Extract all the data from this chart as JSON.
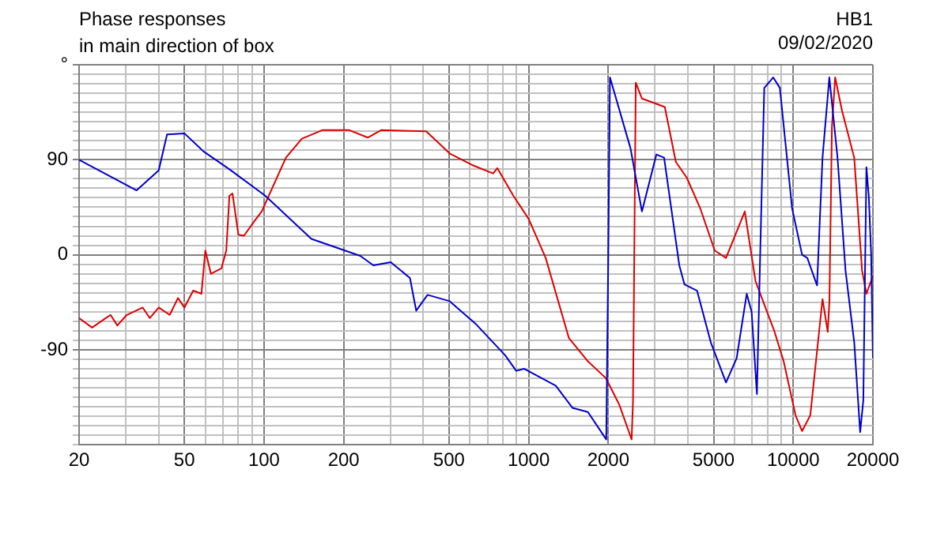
{
  "chart_data": {
    "type": "line",
    "title": "Phase responses",
    "subtitle": "in main direction of box",
    "annotations": [
      "HB1",
      "09/02/2020"
    ],
    "log": "x",
    "grid": true,
    "legend": false,
    "marker": "none",
    "line_style": "solid",
    "xlim": [
      20,
      20000
    ],
    "xticks": [
      20,
      {
        "value": 30,
        "label": null
      },
      {
        "value": 40,
        "label": null
      },
      50,
      {
        "value": 60,
        "label": null
      },
      {
        "value": 70,
        "label": null
      },
      {
        "value": 80,
        "label": null
      },
      {
        "value": 90,
        "label": null
      },
      100,
      200,
      {
        "value": 300,
        "label": null
      },
      {
        "value": 400,
        "label": null
      },
      500,
      {
        "value": 600,
        "label": null
      },
      {
        "value": 700,
        "label": null
      },
      {
        "value": 800,
        "label": null
      },
      {
        "value": 900,
        "label": null
      },
      1000,
      2000,
      {
        "value": 3000,
        "label": null
      },
      {
        "value": 4000,
        "label": null
      },
      5000,
      {
        "value": 6000,
        "label": null
      },
      {
        "value": 7000,
        "label": null
      },
      {
        "value": 8000,
        "label": null
      },
      {
        "value": 9000,
        "label": null
      },
      10000,
      20000
    ],
    "ylim": [
      -180,
      180
    ],
    "yticks": [
      {
        "value": -180,
        "label": null
      },
      {
        "value": -171,
        "label": null
      },
      {
        "value": -162,
        "label": null
      },
      {
        "value": -153,
        "label": null
      },
      {
        "value": -144,
        "label": null
      },
      {
        "value": -135,
        "label": null
      },
      {
        "value": -126,
        "label": null
      },
      {
        "value": -117,
        "label": null
      },
      {
        "value": -108,
        "label": null
      },
      {
        "value": -99,
        "label": null
      },
      -90,
      {
        "value": -81,
        "label": null
      },
      {
        "value": -72,
        "label": null
      },
      {
        "value": -63,
        "label": null
      },
      {
        "value": -54,
        "label": null
      },
      {
        "value": -45,
        "label": null
      },
      {
        "value": -36,
        "label": null
      },
      {
        "value": -27,
        "label": null
      },
      {
        "value": -18,
        "label": null
      },
      {
        "value": -9,
        "label": null
      },
      0,
      {
        "value": 9,
        "label": null
      },
      {
        "value": 18,
        "label": null
      },
      {
        "value": 27,
        "label": null
      },
      {
        "value": 36,
        "label": null
      },
      {
        "value": 45,
        "label": null
      },
      {
        "value": 54,
        "label": null
      },
      {
        "value": 63,
        "label": null
      },
      {
        "value": 72,
        "label": null
      },
      {
        "value": 81,
        "label": null
      },
      90,
      {
        "value": 99,
        "label": null
      },
      {
        "value": 108,
        "label": null
      },
      {
        "value": 117,
        "label": null
      },
      {
        "value": 126,
        "label": null
      },
      {
        "value": 135,
        "label": null
      },
      {
        "value": 144,
        "label": null
      },
      {
        "value": 153,
        "label": null
      },
      {
        "value": 162,
        "label": null
      },
      {
        "value": 171,
        "label": null
      },
      {
        "value": 180,
        "label": "°"
      }
    ],
    "series": [
      {
        "color": "#0000cc",
        "x": [
          20,
          33,
          40,
          43,
          50,
          59,
          74,
          101,
          151,
          231,
          259,
          301,
          356,
          376,
          415,
          503,
          634,
          814,
          898,
          960,
          1266,
          1464,
          1675,
          1965,
          2000,
          2029,
          2426,
          2680,
          3040,
          3250,
          3710,
          3880,
          4330,
          4880,
          5570,
          6110,
          6670,
          6960,
          7290,
          7500,
          7770,
          8400,
          8900,
          9900,
          10800,
          11300,
          12300,
          12900,
          13690,
          14700,
          15760,
          17000,
          17900,
          18400,
          18900,
          19300,
          19700,
          20000
        ],
        "values": [
          90,
          61,
          80,
          114,
          115,
          98,
          81,
          56,
          15,
          -1,
          -10,
          -7,
          -22,
          -53,
          -38,
          -44,
          -66,
          -95,
          -110,
          -108,
          -124,
          -145,
          -149,
          -175,
          0,
          168,
          101,
          41,
          95,
          92,
          -10,
          -28,
          -34,
          -83,
          -121,
          -98,
          -37,
          -54,
          -132,
          0,
          158,
          168,
          158,
          44,
          0,
          -3,
          -29,
          92,
          168,
          92,
          -15,
          -83,
          -168,
          -138,
          83,
          55,
          0,
          -98
        ]
      },
      {
        "color": "#dd0000",
        "x": [
          20,
          22.4,
          24.9,
          26.3,
          27.9,
          30.3,
          34.8,
          37,
          40,
          44,
          47.3,
          50,
          54,
          58,
          60,
          63,
          69,
          72,
          74,
          76,
          80,
          84,
          92,
          98,
          121,
          139,
          166,
          210,
          247,
          277,
          410,
          503,
          612,
          734,
          762,
          875,
          1000,
          1160,
          1420,
          1675,
          1960,
          2200,
          2450,
          2480,
          2540,
          2680,
          3040,
          3270,
          3600,
          3960,
          4450,
          5050,
          5570,
          6560,
          7200,
          8500,
          9200,
          10200,
          10800,
          11600,
          12900,
          13500,
          13700,
          14000,
          14400,
          15300,
          17000,
          18200,
          18900,
          20000
        ],
        "values": [
          -60,
          -69,
          -61,
          -57,
          -67,
          -57,
          -50,
          -60,
          -50,
          -57,
          -41,
          -50,
          -34,
          -37,
          4,
          -18,
          -13,
          4,
          56,
          58,
          19,
          18,
          32,
          41,
          92,
          110,
          118,
          118,
          111,
          118,
          117,
          96,
          85,
          77,
          82,
          56,
          34,
          -3,
          -79,
          -101,
          -117,
          -142,
          -175,
          -138,
          163,
          148,
          143,
          140,
          88,
          73,
          44,
          4,
          -3,
          41,
          -25,
          -73,
          -101,
          -152,
          -167,
          -152,
          -42,
          -73,
          -44,
          121,
          168,
          136,
          92,
          -15,
          -37,
          -20
        ]
      }
    ]
  }
}
